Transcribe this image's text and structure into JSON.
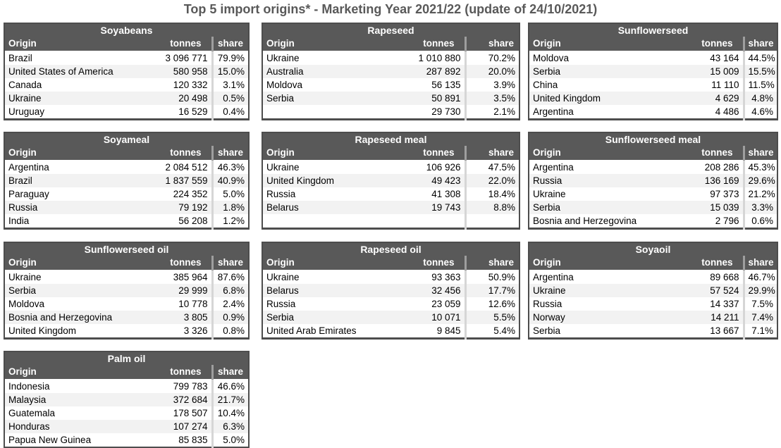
{
  "page_title": "Top 5 import origins* - Marketing Year 2021/22 (update of 24/10/2021)",
  "colors": {
    "header_bg": "#595959",
    "header_text": "#ffffff",
    "title_text": "#595959",
    "row_stripe": "#f2f2f2",
    "table_border": "#4d4d4d",
    "share_divider": "#d6d6d6",
    "share_divider_header": "#9e9e9e"
  },
  "chart_data": [
    {
      "type": "table",
      "title": "Soyabeans",
      "columns": [
        "Origin",
        "tonnes",
        "share"
      ],
      "grid": {
        "row": 1,
        "col": 1
      },
      "rows": [
        [
          "Brazil",
          "3 096 771",
          "79.9%"
        ],
        [
          "United States of America",
          "580 958",
          "15.0%"
        ],
        [
          "Canada",
          "120 332",
          "3.1%"
        ],
        [
          "Ukraine",
          "20 498",
          "0.5%"
        ],
        [
          "Uruguay",
          "16 529",
          "0.4%"
        ]
      ]
    },
    {
      "type": "table",
      "title": "Rapeseed",
      "columns": [
        "Origin",
        "tonnes",
        "share"
      ],
      "grid": {
        "row": 1,
        "col": 2
      },
      "rows": [
        [
          "Ukraine",
          "1 010 880",
          "70.2%"
        ],
        [
          "Australia",
          "287 892",
          "20.0%"
        ],
        [
          "Moldova",
          "56 135",
          "3.9%"
        ],
        [
          "Serbia",
          "50 891",
          "3.5%"
        ],
        [
          "",
          "29 730",
          "2.1%"
        ]
      ]
    },
    {
      "type": "table",
      "title": "Sunflowerseed",
      "columns": [
        "Origin",
        "tonnes",
        "share"
      ],
      "grid": {
        "row": 1,
        "col": 3
      },
      "rows": [
        [
          "Moldova",
          "43 164",
          "44.5%"
        ],
        [
          "Serbia",
          "15 009",
          "15.5%"
        ],
        [
          "China",
          "11 110",
          "11.5%"
        ],
        [
          "United Kingdom",
          "4 629",
          "4.8%"
        ],
        [
          "Argentina",
          "4 486",
          "4.6%"
        ]
      ]
    },
    {
      "type": "table",
      "title": "Soyameal",
      "columns": [
        "Origin",
        "tonnes",
        "share"
      ],
      "grid": {
        "row": 2,
        "col": 1
      },
      "rows": [
        [
          "Argentina",
          "2 084 512",
          "46.3%"
        ],
        [
          "Brazil",
          "1 837 559",
          "40.9%"
        ],
        [
          "Paraguay",
          "224 352",
          "5.0%"
        ],
        [
          "Russia",
          "79 192",
          "1.8%"
        ],
        [
          "India",
          "56 208",
          "1.2%"
        ]
      ]
    },
    {
      "type": "table",
      "title": "Rapeseed meal",
      "columns": [
        "Origin",
        "tonnes",
        "share"
      ],
      "grid": {
        "row": 2,
        "col": 2
      },
      "rows": [
        [
          "Ukraine",
          "106 926",
          "47.5%"
        ],
        [
          "United Kingdom",
          "49 423",
          "22.0%"
        ],
        [
          "Russia",
          "41 308",
          "18.4%"
        ],
        [
          "Belarus",
          "19 743",
          "8.8%"
        ],
        [
          "",
          "",
          ""
        ]
      ]
    },
    {
      "type": "table",
      "title": "Sunflowerseed meal",
      "columns": [
        "Origin",
        "tonnes",
        "share"
      ],
      "grid": {
        "row": 2,
        "col": 3
      },
      "rows": [
        [
          "Argentina",
          "208 286",
          "45.3%"
        ],
        [
          "Russia",
          "136 169",
          "29.6%"
        ],
        [
          "Ukraine",
          "97 373",
          "21.2%"
        ],
        [
          "Serbia",
          "15 039",
          "3.3%"
        ],
        [
          "Bosnia and Herzegovina",
          "2 796",
          "0.6%"
        ]
      ]
    },
    {
      "type": "table",
      "title": "Sunflowerseed oil",
      "columns": [
        "Origin",
        "tonnes",
        "share"
      ],
      "grid": {
        "row": 3,
        "col": 1
      },
      "rows": [
        [
          "Ukraine",
          "385 964",
          "87.6%"
        ],
        [
          "Serbia",
          "29 999",
          "6.8%"
        ],
        [
          "Moldova",
          "10 778",
          "2.4%"
        ],
        [
          "Bosnia and Herzegovina",
          "3 805",
          "0.9%"
        ],
        [
          "United Kingdom",
          "3 326",
          "0.8%"
        ]
      ]
    },
    {
      "type": "table",
      "title": "Rapeseed oil",
      "columns": [
        "Origin",
        "tonnes",
        "share"
      ],
      "grid": {
        "row": 3,
        "col": 2
      },
      "rows": [
        [
          "Ukraine",
          "93 363",
          "50.9%"
        ],
        [
          "Belarus",
          "32 456",
          "17.7%"
        ],
        [
          "Russia",
          "23 059",
          "12.6%"
        ],
        [
          "Serbia",
          "10 071",
          "5.5%"
        ],
        [
          "United Arab Emirates",
          "9 845",
          "5.4%"
        ]
      ]
    },
    {
      "type": "table",
      "title": "Soyaoil",
      "columns": [
        "Origin",
        "tonnes",
        "share"
      ],
      "grid": {
        "row": 3,
        "col": 3
      },
      "rows": [
        [
          "Argentina",
          "89 668",
          "46.7%"
        ],
        [
          "Ukraine",
          "57 524",
          "29.9%"
        ],
        [
          "Russia",
          "14 337",
          "7.5%"
        ],
        [
          "Norway",
          "14 211",
          "7.4%"
        ],
        [
          "Serbia",
          "13 667",
          "7.1%"
        ]
      ]
    },
    {
      "type": "table",
      "title": "Palm oil",
      "columns": [
        "Origin",
        "tonnes",
        "share"
      ],
      "grid": {
        "row": 4,
        "col": 1
      },
      "rows": [
        [
          "Indonesia",
          "799 783",
          "46.6%"
        ],
        [
          "Malaysia",
          "372 684",
          "21.7%"
        ],
        [
          "Guatemala",
          "178 507",
          "10.4%"
        ],
        [
          "Honduras",
          "107 274",
          "6.3%"
        ],
        [
          "Papua New Guinea",
          "85 835",
          "5.0%"
        ]
      ]
    }
  ]
}
